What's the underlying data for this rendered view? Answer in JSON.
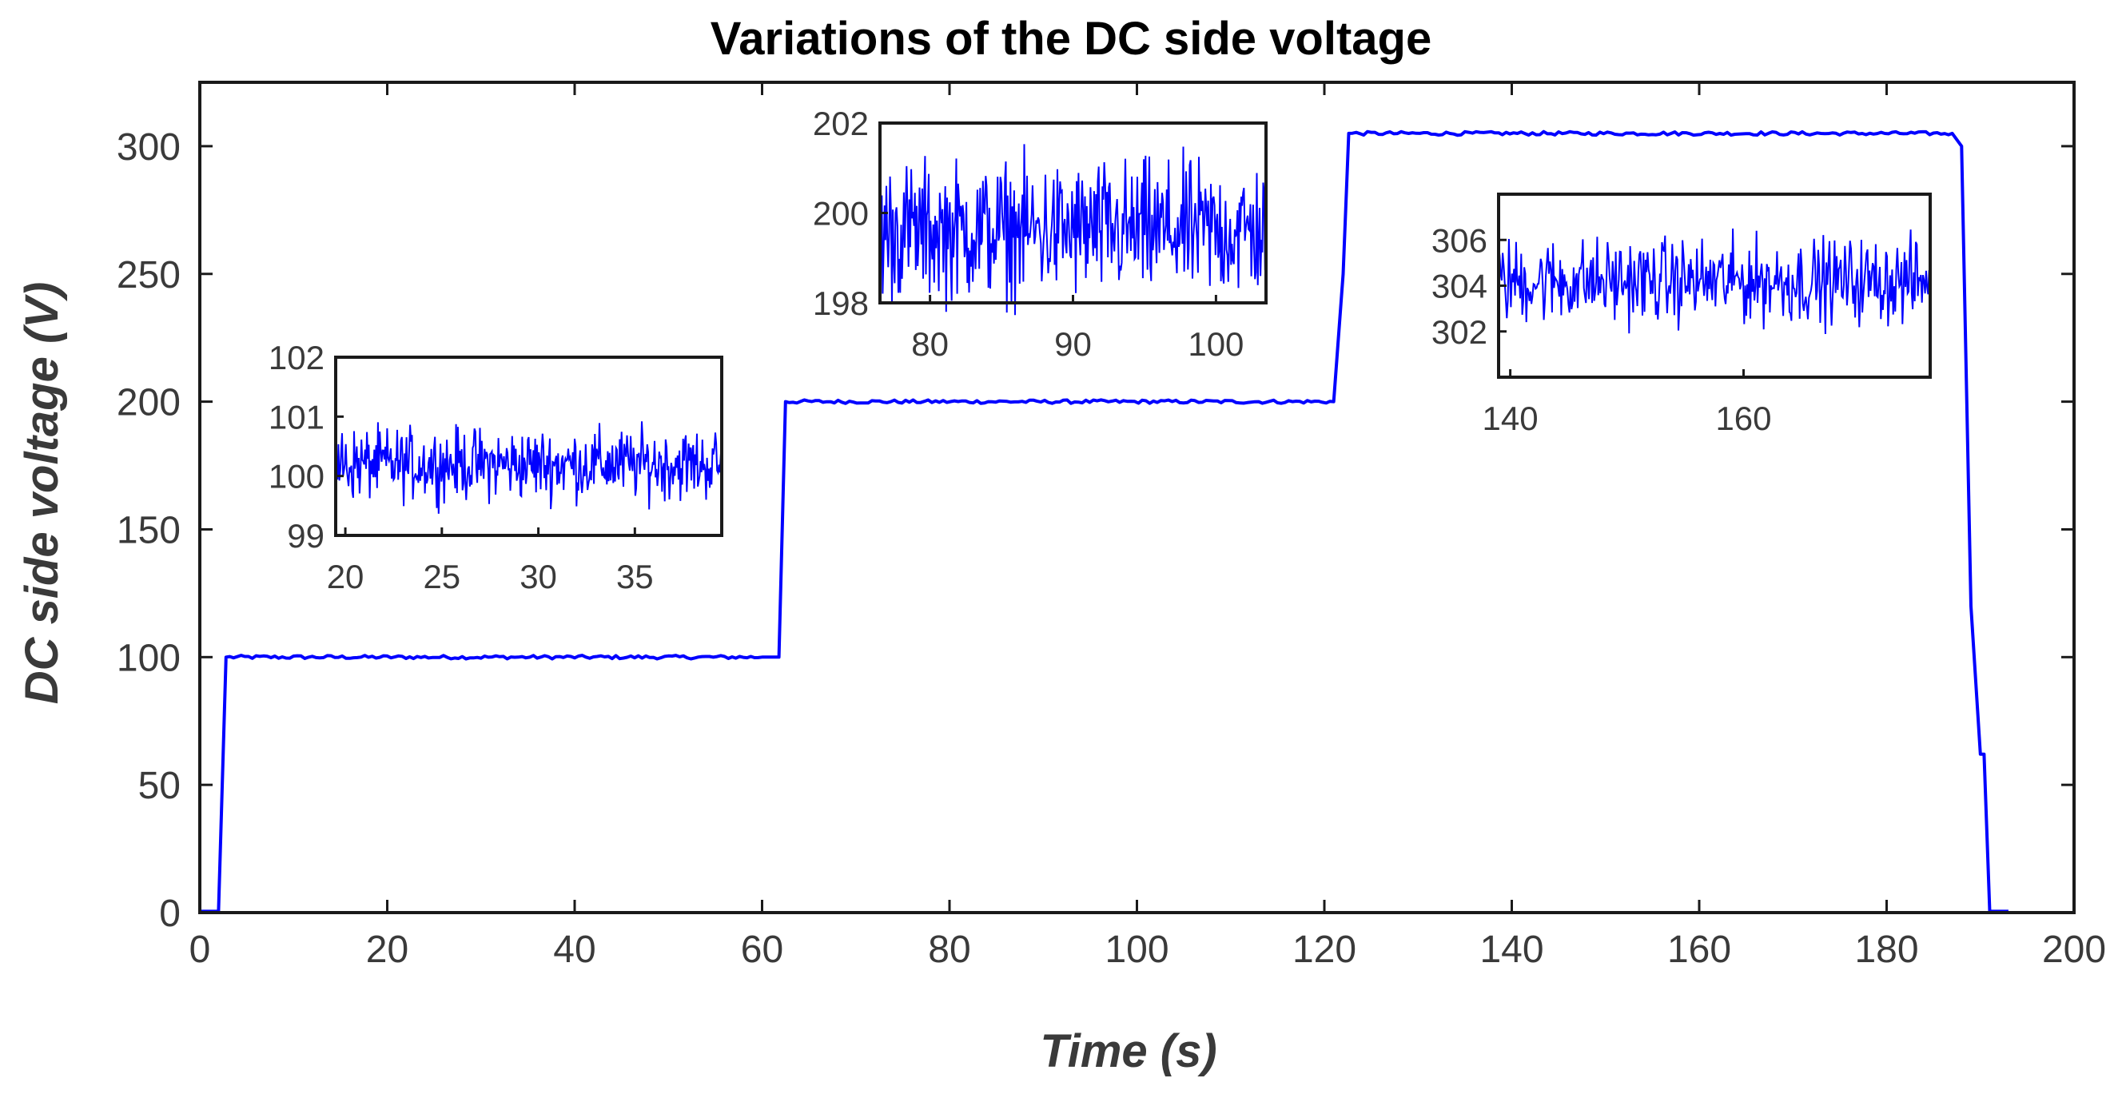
{
  "chart_data": {
    "type": "line",
    "title": "Variations of the DC side voltage",
    "xlabel": "Time (s)",
    "ylabel": "DC side voltage (V)",
    "xlim": [
      0,
      200
    ],
    "ylim": [
      0,
      325
    ],
    "xticks": [
      0,
      20,
      40,
      60,
      80,
      100,
      120,
      140,
      160,
      180,
      200
    ],
    "yticks": [
      0,
      50,
      100,
      150,
      200,
      250,
      300
    ],
    "color": "#0000ff",
    "series": [
      {
        "name": "DC side voltage",
        "x": [
          0,
          2,
          2.8,
          60,
          61.8,
          62.5,
          121,
          122,
          122.6,
          187,
          188,
          189,
          190,
          190.4,
          191,
          193
        ],
        "y": [
          0.5,
          0.5,
          100,
          100,
          100,
          200,
          200,
          250,
          305,
          305,
          300,
          120,
          62,
          62,
          0.5,
          0.5
        ]
      }
    ],
    "insets": [
      {
        "name": "inset-100V",
        "xlim": [
          19.5,
          39.5
        ],
        "ylim": [
          99,
          102
        ],
        "xticks": [
          20,
          25,
          30,
          35
        ],
        "yticks": [
          99,
          100,
          101,
          102
        ],
        "mean": 100.2,
        "amplitude": 0.55
      },
      {
        "name": "inset-200V",
        "xlim": [
          76.5,
          103.5
        ],
        "ylim": [
          198,
          202
        ],
        "xticks": [
          80,
          90,
          100
        ],
        "yticks": [
          198,
          200,
          202
        ],
        "mean": 199.6,
        "amplitude": 1.4
      },
      {
        "name": "inset-300V",
        "xlim": [
          139,
          176
        ],
        "ylim": [
          300,
          308
        ],
        "xticks": [
          140,
          160
        ],
        "yticks": [
          302,
          304,
          306
        ],
        "mean": 304.2,
        "amplitude": 1.7
      }
    ]
  }
}
